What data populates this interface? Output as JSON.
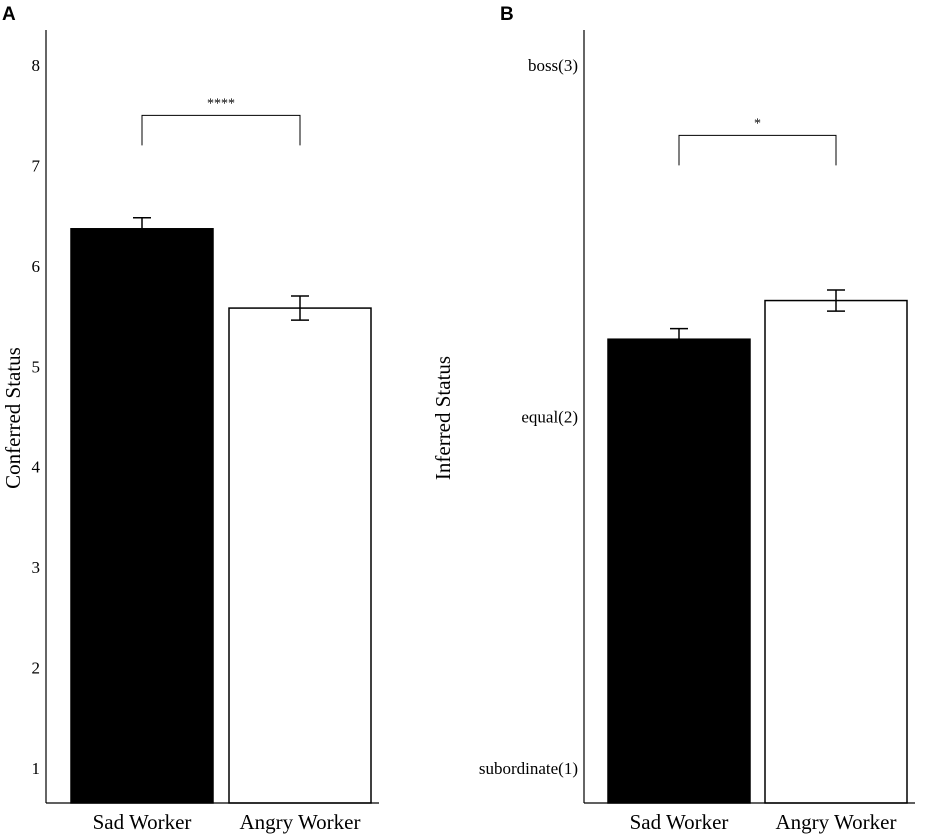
{
  "chart_data": [
    {
      "panel": "A",
      "type": "bar",
      "categories": [
        "Sad Worker",
        "Angry Worker"
      ],
      "values": [
        6.37,
        5.58
      ],
      "error": [
        0.11,
        0.12
      ],
      "bar_colors": [
        "#000000",
        "#ffffff"
      ],
      "ylabel": "Conferred Status",
      "xlabel": "",
      "yticks": [
        1,
        2,
        3,
        4,
        5,
        6,
        7,
        8
      ],
      "ytick_labels": [
        "1",
        "2",
        "3",
        "4",
        "5",
        "6",
        "7",
        "8"
      ],
      "ylim": [
        0.65,
        8.35
      ],
      "significance": {
        "from": 0,
        "to": 1,
        "label": "****",
        "level": 7.5
      },
      "grid": false
    },
    {
      "panel": "B",
      "type": "bar",
      "categories": [
        "Sad Worker",
        "Angry Worker"
      ],
      "values": [
        2.22,
        2.33
      ],
      "error": [
        0.03,
        0.03
      ],
      "bar_colors": [
        "#000000",
        "#ffffff"
      ],
      "ylabel": "Inferred Status",
      "xlabel": "",
      "yticks": [
        1,
        2,
        3
      ],
      "ytick_labels": [
        "subordinate(1)",
        "equal(2)",
        "boss(3)"
      ],
      "ylim": [
        0.9,
        3.1
      ],
      "significance": {
        "from": 0,
        "to": 1,
        "label": "*",
        "level": 2.8
      },
      "grid": false
    }
  ]
}
